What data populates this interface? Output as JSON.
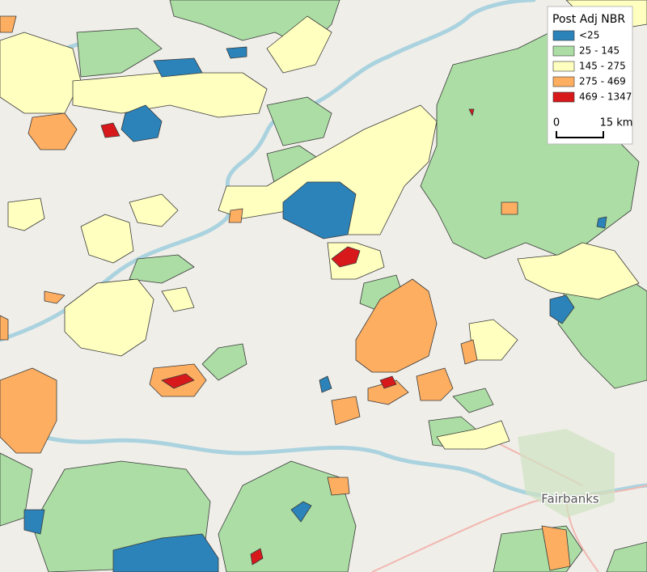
{
  "legend": {
    "title": "Post Adj NBR",
    "items": [
      {
        "label": "<25",
        "color": "#2b83ba"
      },
      {
        "label": "25 - 145",
        "color": "#abdda4"
      },
      {
        "label": "145 - 275",
        "color": "#ffffbf"
      },
      {
        "label": "275 - 469",
        "color": "#fdae61"
      },
      {
        "label": "469 - 1347",
        "color": "#d7191c"
      }
    ]
  },
  "scale_bar": {
    "start": "0",
    "end": "15 km"
  },
  "places": [
    {
      "label": "Fairbanks"
    }
  ]
}
